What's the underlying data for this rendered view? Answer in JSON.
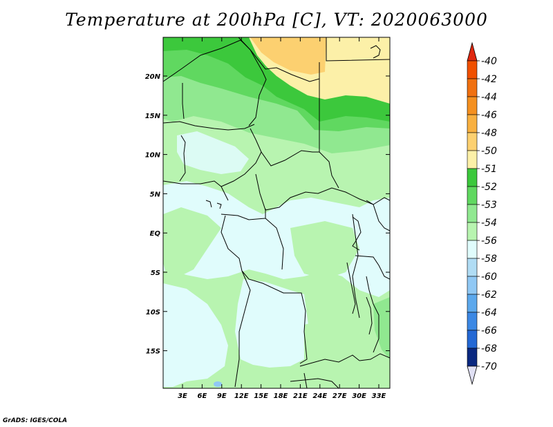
{
  "title": "Temperature at 200hPa [C], VT: 2020063000",
  "credit": "GrADS: IGES/COLA",
  "map": {
    "lon_labels": [
      "3E",
      "6E",
      "9E",
      "12E",
      "15E",
      "18E",
      "21E",
      "24E",
      "27E",
      "30E",
      "33E"
    ],
    "lat_labels": [
      "20N",
      "15N",
      "10N",
      "5N",
      "EQ",
      "5S",
      "10S",
      "15S"
    ]
  },
  "colorbar": {
    "levels": [
      "-40",
      "-42",
      "-44",
      "-46",
      "-48",
      "-50",
      "-51",
      "-52",
      "-53",
      "-54",
      "-56",
      "-58",
      "-60",
      "-62",
      "-64",
      "-66",
      "-68",
      "-70"
    ],
    "colors": [
      "#f4eca0",
      "#fcd070",
      "#f8b040",
      "#f49020",
      "#f07010",
      "#f05000",
      "#e02810",
      "#fcf0a8",
      "#3cc83c",
      "#60d860",
      "#90e890",
      "#b8f4b0",
      "#e0fcfc",
      "#b0dcf4",
      "#90c8f4",
      "#5ca8ec",
      "#3c88e4",
      "#2468d4",
      "#1448b4",
      "#0a2880",
      "#e0e0f4"
    ]
  }
}
